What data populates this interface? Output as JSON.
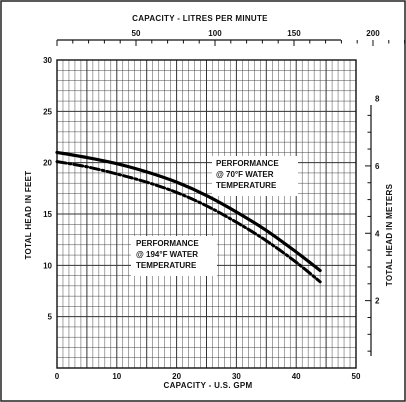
{
  "chart_data": {
    "type": "line",
    "x_label_bottom": "CAPACITY - U.S. GPM",
    "x_label_top": "CAPACITY - LITRES PER MINUTE",
    "y_label_left": "TOTAL HEAD IN FEET",
    "y_label_right": "TOTAL HEAD IN METERS",
    "xlim": [
      0,
      50
    ],
    "ylim": [
      0,
      30
    ],
    "x_ticks": [
      0,
      10,
      20,
      30,
      40,
      50
    ],
    "y_ticks": [
      5,
      10,
      15,
      20,
      25,
      30
    ],
    "top_ticks": [
      50,
      100,
      150,
      200
    ],
    "right_ticks": [
      2,
      4,
      6,
      8
    ],
    "grid": true,
    "series": [
      {
        "label_lines": [
          "PERFORMANCE",
          "@ 70°F WATER",
          "TEMPERATURE"
        ],
        "style": "solid",
        "x": [
          0,
          5,
          10,
          15,
          20,
          25,
          30,
          35,
          40,
          44
        ],
        "y": [
          21.0,
          20.5,
          19.9,
          19.1,
          18.1,
          16.8,
          15.2,
          13.4,
          11.3,
          9.5
        ]
      },
      {
        "label_lines": [
          "PERFORMANCE",
          "@ 194°F WATER",
          "TEMPERATURE"
        ],
        "style": "dash-dot",
        "x": [
          0,
          5,
          10,
          15,
          20,
          25,
          30,
          35,
          40,
          44
        ],
        "y": [
          20.1,
          19.6,
          18.9,
          18.1,
          17.1,
          15.8,
          14.2,
          12.4,
          10.3,
          8.4
        ]
      }
    ]
  }
}
